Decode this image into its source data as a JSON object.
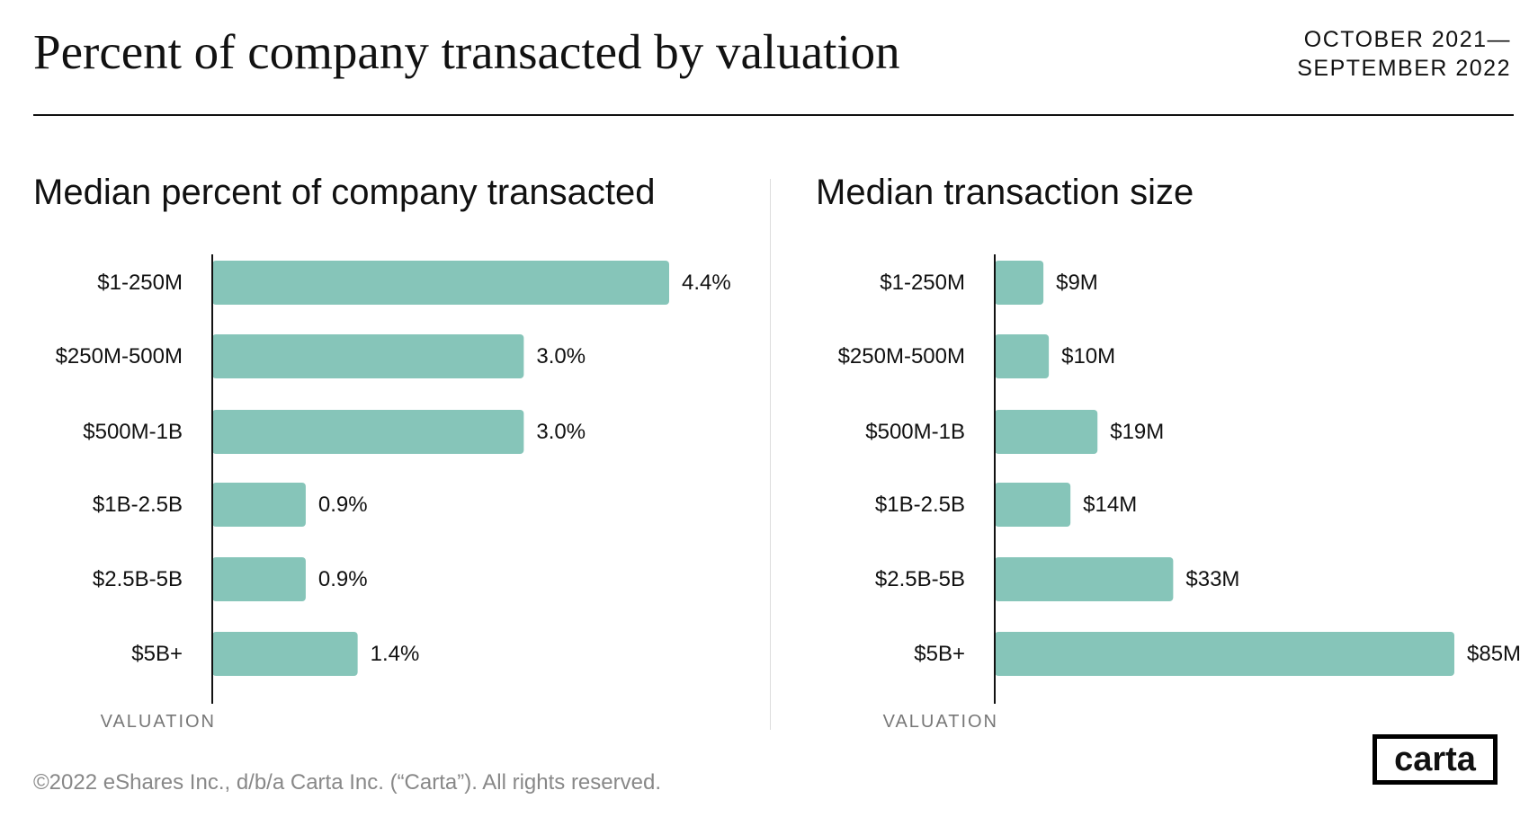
{
  "title": "Percent of company transacted by valuation",
  "date_range": [
    "OCTOBER 2021—",
    "SEPTEMBER 2022"
  ],
  "footer": "©2022 eShares Inc., d/b/a Carta Inc. (“Carta”). All rights reserved.",
  "logo_text": "carta",
  "colors": {
    "bar": "#86c5b9",
    "axis": "#111111"
  },
  "chart_data": [
    {
      "type": "bar",
      "orientation": "horizontal",
      "title": "Median percent of company transacted",
      "ylabel": "VALUATION",
      "categories": [
        "$1-250M",
        "$250M-500M",
        "$500M-1B",
        "$1B-2.5B",
        "$2.5B-5B",
        "$5B+"
      ],
      "values": [
        4.4,
        3.0,
        3.0,
        0.9,
        0.9,
        1.4
      ],
      "labels": [
        "4.4%",
        "3.0%",
        "3.0%",
        "0.9%",
        "0.9%",
        "1.4%"
      ],
      "xlim": [
        0,
        4.4
      ],
      "grid": false
    },
    {
      "type": "bar",
      "orientation": "horizontal",
      "title": "Median transaction size",
      "ylabel": "VALUATION",
      "categories": [
        "$1-250M",
        "$250M-500M",
        "$500M-1B",
        "$1B-2.5B",
        "$2.5B-5B",
        "$5B+"
      ],
      "values": [
        9,
        10,
        19,
        14,
        33,
        85
      ],
      "labels": [
        "$9M",
        "$10M",
        "$19M",
        "$14M",
        "$33M",
        "$85M"
      ],
      "xlim": [
        0,
        85
      ],
      "grid": false
    }
  ]
}
